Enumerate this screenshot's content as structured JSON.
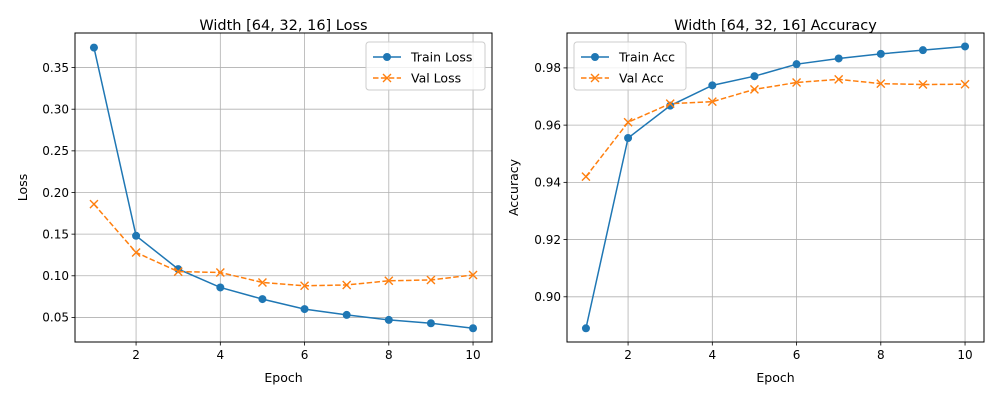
{
  "chart_data": [
    {
      "type": "line",
      "title": "Width [64, 32, 16] Loss",
      "xlabel": "Epoch",
      "ylabel": "Loss",
      "xlim": [
        0.55,
        10.45
      ],
      "ylim": [
        0.0205,
        0.3915
      ],
      "xticks": [
        2,
        4,
        6,
        8,
        10
      ],
      "yticks": [
        0.05,
        0.1,
        0.15,
        0.2,
        0.25,
        0.3,
        0.35
      ],
      "ytick_decimals": 2,
      "grid": true,
      "legend_position": "top-right",
      "x": [
        1,
        2,
        3,
        4,
        5,
        6,
        7,
        8,
        9,
        10
      ],
      "series": [
        {
          "name": "Train Loss",
          "color": "#1f77b4",
          "marker": "circle",
          "linestyle": "solid",
          "values": [
            0.374,
            0.148,
            0.108,
            0.086,
            0.072,
            0.06,
            0.053,
            0.047,
            0.043,
            0.037
          ]
        },
        {
          "name": "Val Loss",
          "color": "#ff7f0e",
          "marker": "x",
          "linestyle": "dashed",
          "values": [
            0.186,
            0.128,
            0.105,
            0.104,
            0.092,
            0.088,
            0.089,
            0.094,
            0.095,
            0.101
          ]
        }
      ]
    },
    {
      "type": "line",
      "title": "Width [64, 32, 16] Accuracy",
      "xlabel": "Epoch",
      "ylabel": "Accuracy",
      "xlim": [
        0.55,
        10.45
      ],
      "ylim": [
        0.8842,
        0.9922
      ],
      "xticks": [
        2,
        4,
        6,
        8,
        10
      ],
      "yticks": [
        0.9,
        0.92,
        0.94,
        0.96,
        0.98
      ],
      "ytick_decimals": 2,
      "grid": true,
      "legend_position": "top-left",
      "x": [
        1,
        2,
        3,
        4,
        5,
        6,
        7,
        8,
        9,
        10
      ],
      "series": [
        {
          "name": "Train Acc",
          "color": "#1f77b4",
          "marker": "circle",
          "linestyle": "solid",
          "values": [
            0.889,
            0.9555,
            0.9668,
            0.9739,
            0.9771,
            0.9813,
            0.9833,
            0.9849,
            0.9862,
            0.9875
          ]
        },
        {
          "name": "Val Acc",
          "color": "#ff7f0e",
          "marker": "x",
          "linestyle": "dashed",
          "values": [
            0.942,
            0.961,
            0.9675,
            0.9682,
            0.9725,
            0.9749,
            0.976,
            0.9745,
            0.9742,
            0.9743
          ]
        }
      ]
    }
  ]
}
